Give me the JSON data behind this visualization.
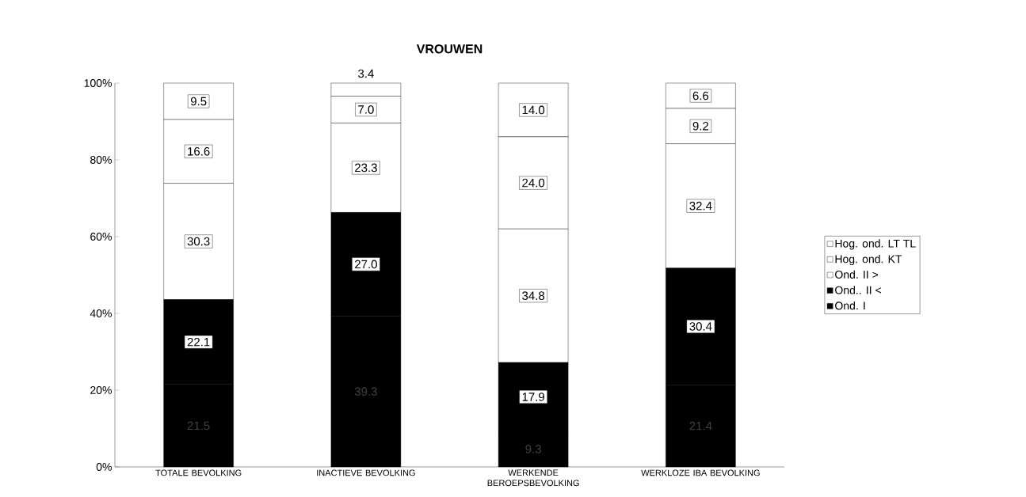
{
  "chart_data": {
    "type": "bar",
    "stacked": true,
    "title": "VROUWEN",
    "categories": [
      "TOTALE  BEVOLKING",
      "INACTIEVE BEVOLKING",
      "WERKENDE BEROEPSBEVOLKING",
      "WERKLOZE IBA BEVOLKING"
    ],
    "series": [
      {
        "name": "Ond.  I",
        "color": "#000000",
        "values": [
          21.5,
          39.3,
          9.3,
          21.4
        ],
        "value_labels": [
          "21.5",
          "39.3",
          "9.3",
          "21.4"
        ]
      },
      {
        "name": "Ond.. II <",
        "color": "#000000",
        "values": [
          22.1,
          27.0,
          17.9,
          30.4
        ],
        "value_labels": [
          "22.1",
          "27.0",
          "17.9",
          "30.4"
        ]
      },
      {
        "name": "Ond. II >",
        "color": "#ffffff",
        "values": [
          30.3,
          23.3,
          34.8,
          32.4
        ],
        "value_labels": [
          "30.3",
          "23.3",
          "34.8",
          "32.4"
        ]
      },
      {
        "name": "Hog. ond. KT",
        "color": "#ffffff",
        "values": [
          16.6,
          7.0,
          24.0,
          9.2
        ],
        "value_labels": [
          "16.6",
          "7.0",
          "24.0",
          "9.2"
        ]
      },
      {
        "name": "Hog. ond. LT TL",
        "color": "#ffffff",
        "values": [
          9.5,
          3.4,
          14.0,
          6.6
        ],
        "value_labels": [
          "9.5",
          "3.4",
          "14.0",
          "6.6"
        ]
      }
    ],
    "ylim": [
      0,
      100
    ],
    "yticks": [
      {
        "value": 0,
        "label": "0%"
      },
      {
        "value": 20,
        "label": "20%"
      },
      {
        "value": 40,
        "label": "40%"
      },
      {
        "value": 60,
        "label": "60%"
      },
      {
        "value": 80,
        "label": "80%"
      },
      {
        "value": 100,
        "label": "100%"
      }
    ],
    "grid": false,
    "legend": "right"
  }
}
